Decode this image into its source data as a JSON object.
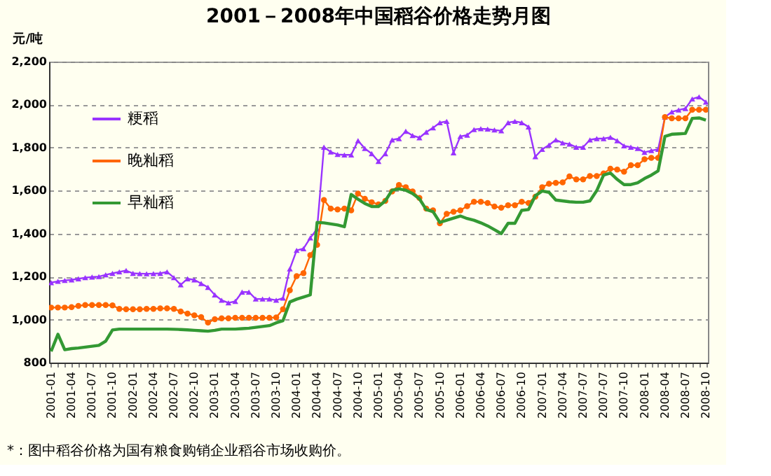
{
  "chart_data": {
    "type": "line",
    "title": "2001－2008年中国稻谷价格走势月图",
    "ylabel": "元/吨",
    "categories": [
      "2001-01",
      null,
      null,
      "2001-04",
      null,
      null,
      "2001-07",
      null,
      null,
      "2001-10",
      null,
      null,
      "2002-01",
      null,
      null,
      "2002-04",
      null,
      null,
      "2002-07",
      null,
      null,
      "2002-10",
      null,
      null,
      "2003-01",
      null,
      null,
      "2003-04",
      null,
      null,
      "2003-07",
      null,
      null,
      "2003-10",
      null,
      null,
      "2004-01",
      null,
      null,
      "2004-04",
      null,
      null,
      "2004-07",
      null,
      null,
      "2004-10",
      null,
      null,
      "2005-01",
      null,
      null,
      "2005-04",
      null,
      null,
      "2005-07",
      null,
      null,
      "2005-10",
      null,
      null,
      "2006-01",
      null,
      null,
      "2006-04",
      null,
      null,
      "2006-07",
      null,
      null,
      "2006-10",
      null,
      null,
      "2007-01",
      null,
      null,
      "2007-04",
      null,
      null,
      "2007-07",
      null,
      null,
      "2007-07",
      null,
      null,
      "2007-10",
      null,
      null,
      "2008-01",
      null,
      null,
      "2008-04",
      null,
      null,
      "2008-07",
      null,
      null,
      "2008-10"
    ],
    "series": [
      {
        "name": "粳稻",
        "color": "#9933ff",
        "marker": "triangle",
        "values": [
          1172,
          1178,
          1182,
          1185,
          1190,
          1195,
          1198,
          1200,
          1208,
          1215,
          1222,
          1228,
          1215,
          1214,
          1213,
          1214,
          1215,
          1222,
          1195,
          1162,
          1190,
          1185,
          1168,
          1150,
          1115,
          1090,
          1078,
          1085,
          1128,
          1128,
          1096,
          1096,
          1096,
          1090,
          1100,
          1236,
          1322,
          1330,
          1380,
          1422,
          1802,
          1780,
          1768,
          1766,
          1766,
          1832,
          1796,
          1772,
          1736,
          1772,
          1836,
          1842,
          1876,
          1856,
          1846,
          1872,
          1892,
          1916,
          1922,
          1776,
          1852,
          1858,
          1884,
          1888,
          1886,
          1882,
          1878,
          1916,
          1922,
          1916,
          1896,
          1758,
          1792,
          1812,
          1836,
          1822,
          1816,
          1802,
          1802,
          1836,
          1842,
          1842,
          1848,
          1832,
          1808,
          1802,
          1796,
          1778,
          1786,
          1792,
          1942,
          1966,
          1975,
          1982,
          2026,
          2036,
          2012
        ]
      },
      {
        "name": "晚籼稻",
        "color": "#ff6600",
        "marker": "circle",
        "values": [
          1056,
          1056,
          1056,
          1058,
          1064,
          1068,
          1068,
          1068,
          1068,
          1066,
          1050,
          1048,
          1048,
          1048,
          1050,
          1050,
          1052,
          1052,
          1050,
          1038,
          1028,
          1020,
          1012,
          986,
          1002,
          1006,
          1006,
          1008,
          1008,
          1008,
          1008,
          1008,
          1008,
          1010,
          1048,
          1136,
          1202,
          1216,
          1300,
          1348,
          1556,
          1516,
          1512,
          1516,
          1508,
          1586,
          1562,
          1546,
          1536,
          1552,
          1596,
          1626,
          1616,
          1596,
          1566,
          1516,
          1508,
          1448,
          1492,
          1502,
          1508,
          1528,
          1548,
          1548,
          1542,
          1526,
          1520,
          1532,
          1532,
          1548,
          1542,
          1572,
          1616,
          1632,
          1636,
          1638,
          1666,
          1652,
          1652,
          1668,
          1668,
          1680,
          1702,
          1698,
          1688,
          1718,
          1718,
          1746,
          1752,
          1752,
          1942,
          1936,
          1936,
          1936,
          1976,
          1976,
          1976
        ]
      },
      {
        "name": "早籼稻",
        "color": "#339933",
        "marker": "none",
        "values": [
          852,
          932,
          860,
          865,
          868,
          872,
          876,
          880,
          900,
          952,
          956,
          956,
          956,
          956,
          956,
          956,
          956,
          956,
          955,
          954,
          952,
          950,
          948,
          946,
          950,
          956,
          956,
          956,
          958,
          960,
          964,
          968,
          972,
          985,
          995,
          1082,
          1095,
          1105,
          1115,
          1452,
          1450,
          1445,
          1440,
          1432,
          1582,
          1560,
          1540,
          1526,
          1526,
          1552,
          1602,
          1608,
          1602,
          1586,
          1562,
          1512,
          1502,
          1452,
          1462,
          1472,
          1482,
          1470,
          1462,
          1450,
          1436,
          1418,
          1400,
          1448,
          1448,
          1508,
          1512,
          1576,
          1598,
          1592,
          1556,
          1552,
          1548,
          1546,
          1546,
          1552,
          1600,
          1672,
          1682,
          1652,
          1628,
          1628,
          1636,
          1656,
          1672,
          1692,
          1852,
          1862,
          1864,
          1866,
          1936,
          1938,
          1928
        ]
      }
    ],
    "ylim": [
      800,
      2200
    ],
    "yticks": [
      800,
      {
        "value": 1000,
        "label": "1,000"
      },
      {
        "value": 1200,
        "label": "1,200"
      },
      {
        "value": 1400,
        "label": "1,400"
      },
      {
        "value": 1600,
        "label": "1,600"
      },
      {
        "value": 1800,
        "label": "1,800"
      },
      {
        "value": 2000,
        "label": "2,000"
      },
      {
        "value": 2200,
        "label": "2,200"
      }
    ],
    "grid": "y",
    "legend": "top left",
    "line_style": "solid",
    "annotations": [
      "*：图中稻谷价格为国有粮食购销企业稻谷市场收购价。"
    ]
  }
}
